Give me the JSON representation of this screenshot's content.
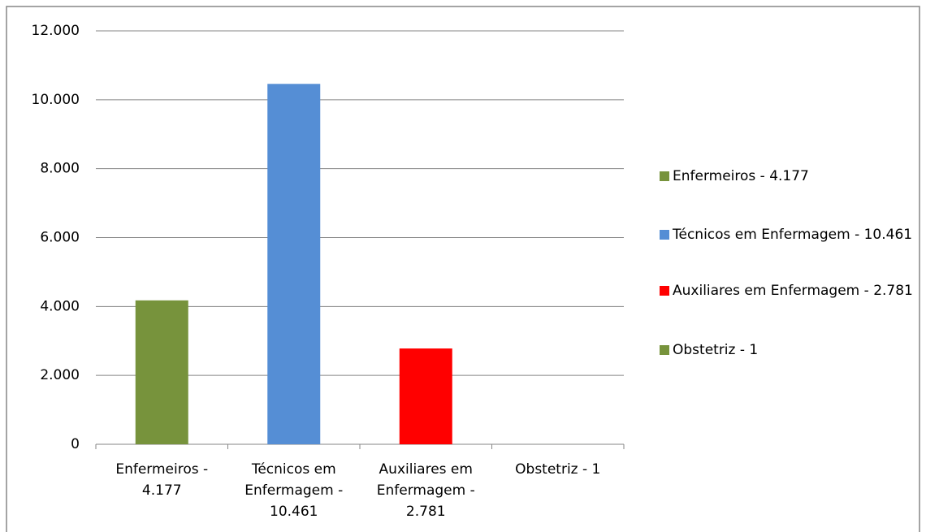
{
  "chart_data": {
    "type": "bar",
    "categories": [
      "Enfermeiros - 4.177",
      "Técnicos em Enfermagem - 10.461",
      "Auxiliares em Enfermagem - 2.781",
      "Obstetriz - 1"
    ],
    "values": [
      4177,
      10461,
      2781,
      1
    ],
    "colors": [
      "#77933c",
      "#558ed5",
      "#ff0000",
      "#77933c"
    ],
    "ylim": [
      0,
      12000
    ],
    "yticks": [
      0,
      {
        "value": 2000,
        "label": "2.000"
      },
      {
        "value": 4000,
        "label": "4.000"
      },
      {
        "value": 6000,
        "label": "6.000"
      },
      {
        "value": 8000,
        "label": "8.000"
      },
      {
        "value": 10000,
        "label": "10.000"
      },
      {
        "value": 12000,
        "label": "12.000"
      }
    ],
    "grid": true,
    "legend": "right"
  }
}
